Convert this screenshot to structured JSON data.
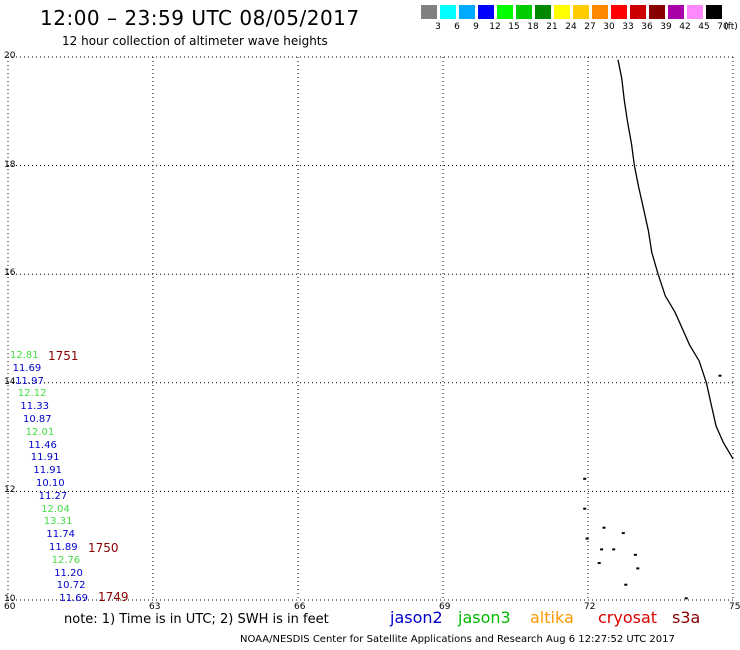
{
  "header": {
    "title": "12:00 – 23:59 UTC 08/05/2017",
    "subtitle": "12 hour collection of altimeter wave heights"
  },
  "colorbar": {
    "unit": "(ft)",
    "bins": [
      {
        "label": "3",
        "color": "#808080"
      },
      {
        "label": "6",
        "color": "#00ffff"
      },
      {
        "label": "9",
        "color": "#00aaff"
      },
      {
        "label": "12",
        "color": "#0000ff"
      },
      {
        "label": "15",
        "color": "#00ff00"
      },
      {
        "label": "18",
        "color": "#00cc00"
      },
      {
        "label": "21",
        "color": "#008800"
      },
      {
        "label": "24",
        "color": "#ffff00"
      },
      {
        "label": "27",
        "color": "#ffcc00"
      },
      {
        "label": "30",
        "color": "#ff8800"
      },
      {
        "label": "33",
        "color": "#ff0000"
      },
      {
        "label": "36",
        "color": "#cc0000"
      },
      {
        "label": "39",
        "color": "#880000"
      },
      {
        "label": "42",
        "color": "#aa00aa"
      },
      {
        "label": "45",
        "color": "#ff88ff"
      },
      {
        "label": "70",
        "color": "#000000"
      }
    ]
  },
  "map": {
    "lat_ticks": [
      "20",
      "18",
      "16",
      "14",
      "12",
      "10"
    ],
    "lon_ticks": [
      "60",
      "63",
      "66",
      "69",
      "72",
      "75"
    ],
    "lat_range": [
      10,
      20
    ],
    "lon_range": [
      60,
      75
    ],
    "grid": "dotted",
    "land": "coastline"
  },
  "observations": [
    {
      "value": "12.81",
      "satellite": "jason3"
    },
    {
      "value": "11.69",
      "satellite": "jason2"
    },
    {
      "value": "11.97",
      "satellite": "jason2"
    },
    {
      "value": "12.12",
      "satellite": "jason3"
    },
    {
      "value": "11.33",
      "satellite": "jason2"
    },
    {
      "value": "10.87",
      "satellite": "jason2"
    },
    {
      "value": "12.01",
      "satellite": "jason3"
    },
    {
      "value": "11.46",
      "satellite": "jason2"
    },
    {
      "value": "11.91",
      "satellite": "jason2"
    },
    {
      "value": "11.91",
      "satellite": "jason2"
    },
    {
      "value": "10.10",
      "satellite": "jason2"
    },
    {
      "value": "11.27",
      "satellite": "jason2"
    },
    {
      "value": "12.04",
      "satellite": "jason3"
    },
    {
      "value": "13.31",
      "satellite": "jason3"
    },
    {
      "value": "11.74",
      "satellite": "jason2"
    },
    {
      "value": "11.89",
      "satellite": "jason2"
    },
    {
      "value": "12.76",
      "satellite": "jason3"
    },
    {
      "value": "11.20",
      "satellite": "jason2"
    },
    {
      "value": "10.72",
      "satellite": "jason2"
    },
    {
      "value": "11.69",
      "satellite": "jason2"
    }
  ],
  "time_stamps": [
    "1751",
    "1750",
    "1749"
  ],
  "legend": {
    "note": "note: 1) Time is in UTC; 2) SWH is in feet",
    "satellites": [
      {
        "name": "jason2",
        "color": "#0000cc"
      },
      {
        "name": "jason3",
        "color": "#00bb00"
      },
      {
        "name": "altika",
        "color": "#ff9900"
      },
      {
        "name": "cryosat",
        "color": "#dd0000"
      },
      {
        "name": "s3a",
        "color": "#880000"
      }
    ]
  },
  "footer": "NOAA/NESDIS Center for Satellite Applications and Research    Aug  6 12:27:52 UTC 2017"
}
